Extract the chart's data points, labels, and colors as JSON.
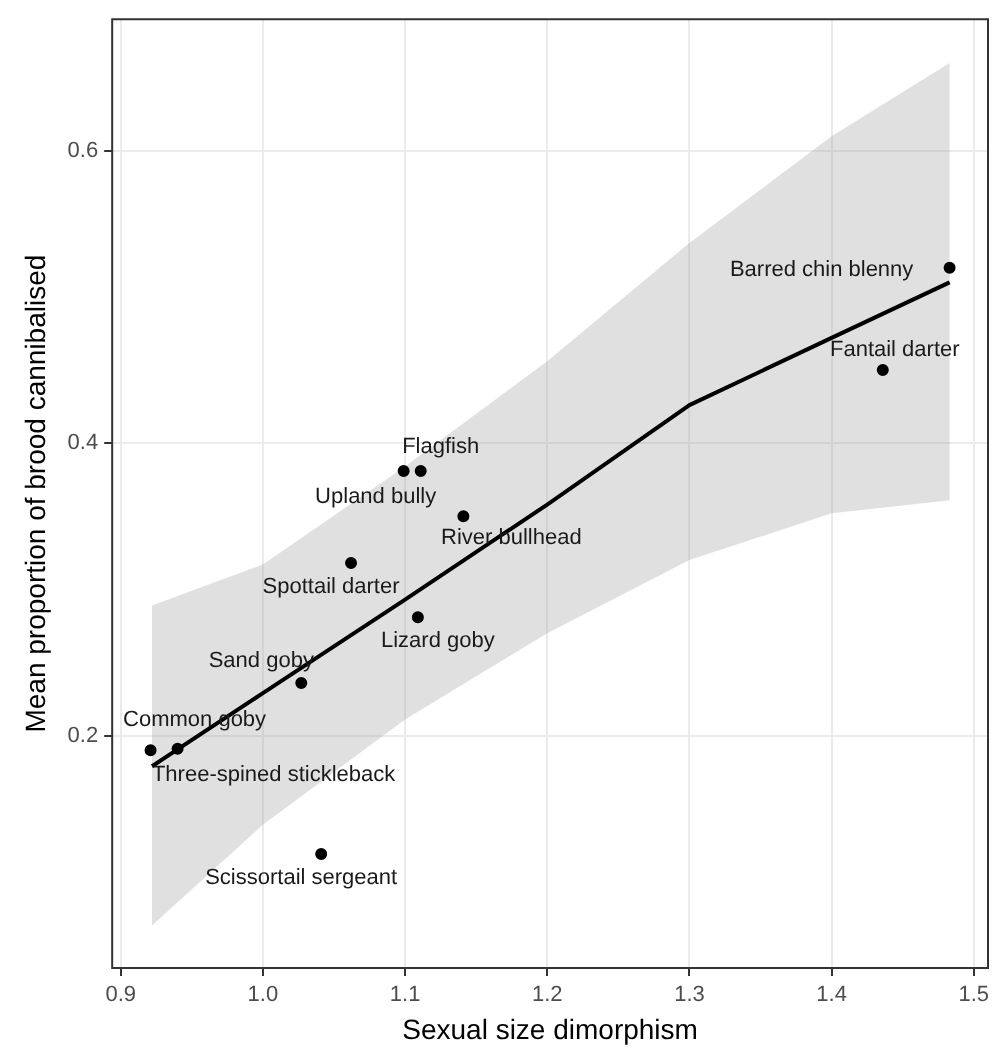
{
  "chart_data": {
    "type": "scatter",
    "xlabel": "Sexual size dimorphism",
    "ylabel": "Mean proportion of brood cannibalised",
    "xlim": [
      0.894,
      1.51
    ],
    "ylim": [
      0.041,
      0.69
    ],
    "xticks": [
      0.9,
      {
        "value": 1,
        "label": "1.0"
      },
      1.1,
      1.2,
      1.3,
      1.4,
      1.5
    ],
    "yticks": [
      0.2,
      0.4,
      0.6
    ],
    "grid": true,
    "marker": "circle",
    "series": [
      {
        "type": "scatter",
        "color": "#000000",
        "x": [
          1.483,
          1.436,
          1.111,
          1.099,
          1.141,
          1.062,
          1.109,
          1.027,
          0.921,
          0.94,
          1.041
        ],
        "values": [
          0.52,
          0.45,
          0.381,
          0.381,
          0.35,
          0.318,
          0.281,
          0.236,
          0.19,
          0.191,
          0.119
        ]
      },
      {
        "type": "line",
        "color": "#000000",
        "line_style": "solid",
        "marker": "none",
        "x": [
          0.922,
          1.0,
          1.1,
          1.2,
          1.3,
          1.4,
          1.483
        ],
        "values": [
          0.179,
          0.229,
          0.293,
          0.358,
          0.426,
          0.472,
          0.51
        ],
        "lower": [
          0.07,
          0.139,
          0.211,
          0.27,
          0.32,
          0.352,
          0.361
        ],
        "upper": [
          0.289,
          0.317,
          0.384,
          0.456,
          0.537,
          0.61,
          0.66
        ]
      }
    ],
    "annotations": [
      {
        "text": "Barred chin blenny",
        "x": 1.483,
        "y": 0.52
      },
      {
        "text": "Fantail darter",
        "x": 1.436,
        "y": 0.45
      },
      {
        "text": "Flagfish",
        "x": 1.111,
        "y": 0.381
      },
      {
        "text": "Upland bully",
        "x": 1.099,
        "y": 0.381
      },
      {
        "text": "River bullhead",
        "x": 1.141,
        "y": 0.35
      },
      {
        "text": "Spottail darter",
        "x": 1.062,
        "y": 0.318
      },
      {
        "text": "Lizard goby",
        "x": 1.109,
        "y": 0.281
      },
      {
        "text": "Sand goby",
        "x": 1.027,
        "y": 0.236
      },
      {
        "text": "Common goby",
        "x": 0.921,
        "y": 0.19
      },
      {
        "text": "Three-spined stickleback",
        "x": 0.94,
        "y": 0.191
      },
      {
        "text": "Scissortail sergeant",
        "x": 1.041,
        "y": 0.119
      }
    ]
  }
}
